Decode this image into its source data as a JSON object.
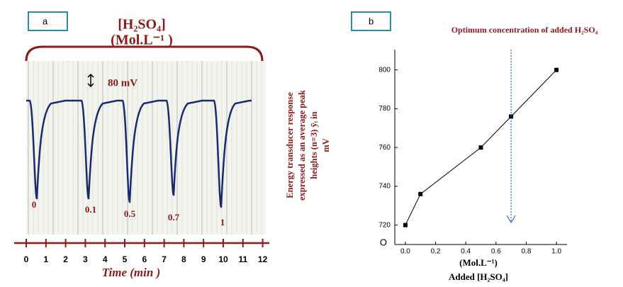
{
  "panel_a": {
    "label": "a",
    "concentration_title": "[H₂SO₄]",
    "concentration_unit": "(Mol.L⁻¹ )",
    "scale_label": "80 mV",
    "peak_labels": [
      "0",
      "0.1",
      "0.5",
      "0.7",
      "1"
    ],
    "time_ticks": [
      "0",
      "1",
      "2",
      "3",
      "4",
      "5",
      "6",
      "7",
      "8",
      "9",
      "10",
      "11",
      "12"
    ],
    "time_label": "Time (min )"
  },
  "y_label_lines": [
    "Energy transducer response",
    "expressed as an average peak",
    "heights (n=3) ȳᵢ  in",
    "mV"
  ],
  "chart_data": {
    "type": "line",
    "label": "b",
    "title": "Optimum concentration of added H₂SO₄",
    "x_label_unit": "(Mol.L⁻¹)",
    "x_label": "Added [H₂SO₄]",
    "stray_label": "O",
    "x": [
      0,
      0.1,
      0.5,
      0.7,
      1
    ],
    "values": [
      720,
      736,
      760,
      776,
      800
    ],
    "color": "#000000",
    "xlim": [
      -0.07,
      1.07
    ],
    "ylim": [
      710,
      805
    ],
    "xticks": [
      {
        "value": 0,
        "label": "0.0"
      },
      {
        "value": 0.2,
        "label": "0.2"
      },
      {
        "value": 0.4,
        "label": "0.4"
      },
      {
        "value": 0.6,
        "label": "0.6"
      },
      {
        "value": 0.8,
        "label": "0.8"
      },
      {
        "value": 1,
        "label": "1.0"
      }
    ],
    "yticks": [
      720,
      740,
      760,
      780,
      800
    ],
    "optimum_x": 0.7,
    "optimum_color": "#2f6db5"
  }
}
